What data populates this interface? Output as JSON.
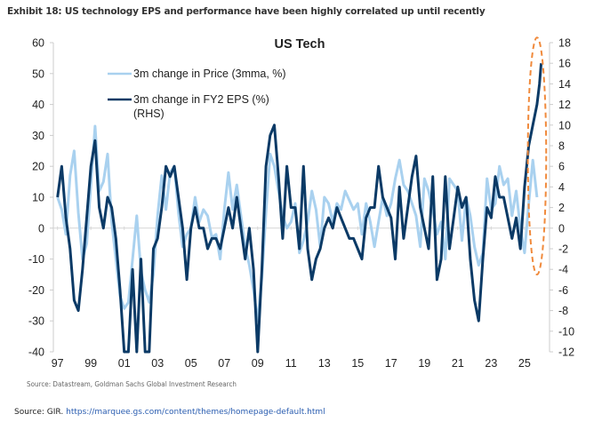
{
  "exhibit_title": "Exhibit 18: US technology EPS and performance have been highly correlated up until recently",
  "chart_source": "Source: Datastream, Goldman Sachs Global Investment Research",
  "page_source": {
    "prefix": "Source: GIR.",
    "link_text": "https://marquee.gs.com/content/themes/homepage-default.html"
  },
  "chart_data": {
    "type": "line",
    "title": "US Tech",
    "xlabel": "",
    "ylabel": "",
    "x_tick_labels": [
      "97",
      "99",
      "01",
      "03",
      "05",
      "07",
      "09",
      "11",
      "13",
      "15",
      "17",
      "19",
      "21",
      "23",
      "25"
    ],
    "x_tick_years": [
      1997,
      1999,
      2001,
      2003,
      2005,
      2007,
      2009,
      2011,
      2013,
      2015,
      2017,
      2019,
      2021,
      2023,
      2025
    ],
    "xlim": [
      1996.75,
      2026.5
    ],
    "y_left": {
      "lim": [
        -40,
        60
      ],
      "ticks": [
        "60",
        "50",
        "40",
        "30",
        "20",
        "10",
        "0",
        "-10",
        "-20",
        "-30",
        "-40"
      ]
    },
    "y_right": {
      "lim": [
        -12,
        18
      ],
      "ticks": [
        "18",
        "16",
        "14",
        "12",
        "10",
        "8",
        "6",
        "4",
        "2",
        "0",
        "-2",
        "-4",
        "-6",
        "-8",
        "-10",
        "-12"
      ]
    },
    "grid": false,
    "zero_line": true,
    "legend_position": "top-left",
    "colors": {
      "price": "#a9d1ef",
      "eps": "#0b3a66",
      "highlight": "#f08a3c",
      "axis": "#cccccc"
    },
    "annotation": {
      "type": "dashed-ellipse",
      "description": "highlights recent divergence",
      "x_range": [
        2025.2,
        2026.3
      ],
      "y_right_range": [
        -4.5,
        18.5
      ]
    },
    "series": [
      {
        "name": "3m change in Price (3mma, %)",
        "axis": "left",
        "x": [
          1997.0,
          1997.25,
          1997.5,
          1997.75,
          1998.0,
          1998.25,
          1998.5,
          1998.75,
          1999.0,
          1999.25,
          1999.5,
          1999.75,
          2000.0,
          2000.25,
          2000.5,
          2000.75,
          2001.0,
          2001.25,
          2001.5,
          2001.75,
          2002.0,
          2002.25,
          2002.5,
          2002.75,
          2003.0,
          2003.25,
          2003.5,
          2003.75,
          2004.0,
          2004.25,
          2004.5,
          2004.75,
          2005.0,
          2005.25,
          2005.5,
          2005.75,
          2006.0,
          2006.25,
          2006.5,
          2006.75,
          2007.0,
          2007.25,
          2007.5,
          2007.75,
          2008.0,
          2008.25,
          2008.5,
          2008.75,
          2009.0,
          2009.25,
          2009.5,
          2009.75,
          2010.0,
          2010.25,
          2010.5,
          2010.75,
          2011.0,
          2011.25,
          2011.5,
          2011.75,
          2012.0,
          2012.25,
          2012.5,
          2012.75,
          2013.0,
          2013.25,
          2013.5,
          2013.75,
          2014.0,
          2014.25,
          2014.5,
          2014.75,
          2015.0,
          2015.25,
          2015.5,
          2015.75,
          2016.0,
          2016.25,
          2016.5,
          2016.75,
          2017.0,
          2017.25,
          2017.5,
          2017.75,
          2018.0,
          2018.25,
          2018.5,
          2018.75,
          2019.0,
          2019.25,
          2019.5,
          2019.75,
          2020.0,
          2020.25,
          2020.5,
          2020.75,
          2021.0,
          2021.25,
          2021.5,
          2021.75,
          2022.0,
          2022.25,
          2022.5,
          2022.75,
          2023.0,
          2023.25,
          2023.5,
          2023.75,
          2024.0,
          2024.25,
          2024.5,
          2024.75,
          2025.0,
          2025.25,
          2025.5,
          2025.75
        ],
        "y": [
          10,
          6,
          -2,
          17,
          25,
          5,
          -10,
          -5,
          14,
          33,
          12,
          15,
          24,
          2,
          -10,
          -22,
          -26,
          -24,
          -10,
          4,
          -14,
          -20,
          -24,
          -15,
          4,
          17,
          6,
          18,
          20,
          5,
          -6,
          -2,
          0,
          10,
          2,
          6,
          4,
          -3,
          -2,
          -10,
          6,
          18,
          6,
          14,
          4,
          -6,
          -12,
          -20,
          -30,
          -16,
          5,
          24,
          20,
          12,
          4,
          0,
          2,
          8,
          -8,
          -4,
          2,
          12,
          6,
          -6,
          10,
          8,
          2,
          8,
          6,
          12,
          9,
          6,
          8,
          -2,
          8,
          2,
          -6,
          2,
          10,
          4,
          8,
          16,
          22,
          14,
          12,
          8,
          4,
          -6,
          16,
          12,
          6,
          -2,
          2,
          -10,
          16,
          14,
          12,
          -4,
          10,
          4,
          -6,
          -12,
          -8,
          16,
          6,
          8,
          20,
          14,
          16,
          4,
          12,
          0,
          -8,
          8,
          22,
          10
        ]
      },
      {
        "name": "3m change in FY2 EPS (%) (RHS)",
        "axis": "right",
        "x": [
          1997.0,
          1997.25,
          1997.5,
          1997.75,
          1998.0,
          1998.25,
          1998.5,
          1998.75,
          1999.0,
          1999.25,
          1999.5,
          1999.75,
          2000.0,
          2000.25,
          2000.5,
          2000.75,
          2001.0,
          2001.25,
          2001.5,
          2001.75,
          2002.0,
          2002.25,
          2002.5,
          2002.75,
          2003.0,
          2003.25,
          2003.5,
          2003.75,
          2004.0,
          2004.25,
          2004.5,
          2004.75,
          2005.0,
          2005.25,
          2005.5,
          2005.75,
          2006.0,
          2006.25,
          2006.5,
          2006.75,
          2007.0,
          2007.25,
          2007.5,
          2007.75,
          2008.0,
          2008.25,
          2008.5,
          2008.75,
          2009.0,
          2009.25,
          2009.5,
          2009.75,
          2010.0,
          2010.25,
          2010.5,
          2010.75,
          2011.0,
          2011.25,
          2011.5,
          2011.75,
          2012.0,
          2012.25,
          2012.5,
          2012.75,
          2013.0,
          2013.25,
          2013.5,
          2013.75,
          2014.0,
          2014.25,
          2014.5,
          2014.75,
          2015.0,
          2015.25,
          2015.5,
          2015.75,
          2016.0,
          2016.25,
          2016.5,
          2016.75,
          2017.0,
          2017.25,
          2017.5,
          2017.75,
          2018.0,
          2018.25,
          2018.5,
          2018.75,
          2019.0,
          2019.25,
          2019.5,
          2019.75,
          2020.0,
          2020.25,
          2020.5,
          2020.75,
          2021.0,
          2021.25,
          2021.5,
          2021.75,
          2022.0,
          2022.25,
          2022.5,
          2022.75,
          2023.0,
          2023.25,
          2023.5,
          2023.75,
          2024.0,
          2024.25,
          2024.5,
          2024.75,
          2025.0,
          2025.25,
          2025.5,
          2025.75,
          2025.9,
          2026.0
        ],
        "y": [
          3,
          6,
          1,
          -2,
          -7,
          -8,
          -4,
          1,
          6,
          8.5,
          2,
          0,
          3,
          2,
          -1,
          -6,
          -12,
          -12,
          -4,
          -12,
          -3,
          -12,
          -12,
          -2,
          -1,
          2,
          6,
          5,
          6,
          3,
          0,
          -5,
          0,
          2,
          0,
          0,
          -2,
          -1,
          -1,
          -2,
          0,
          2,
          0,
          3,
          0,
          -3,
          0,
          -4,
          -12,
          -4,
          6,
          9,
          10,
          5,
          -1,
          6,
          2,
          2,
          -2,
          6,
          -2,
          -5,
          -3,
          -2,
          0,
          1,
          0,
          2,
          1,
          0,
          -1,
          -1,
          -2,
          -3,
          1,
          2,
          2,
          6,
          3,
          2,
          1,
          -3,
          4,
          -1,
          2,
          5,
          7,
          2,
          0,
          -2,
          5,
          -5,
          -3,
          5,
          -2,
          1,
          4,
          2,
          3,
          -3,
          -7,
          -9,
          -3,
          2,
          1,
          5,
          3,
          3,
          1,
          -1,
          1,
          -2,
          4,
          8,
          10,
          12,
          14,
          16
        ]
      }
    ]
  }
}
